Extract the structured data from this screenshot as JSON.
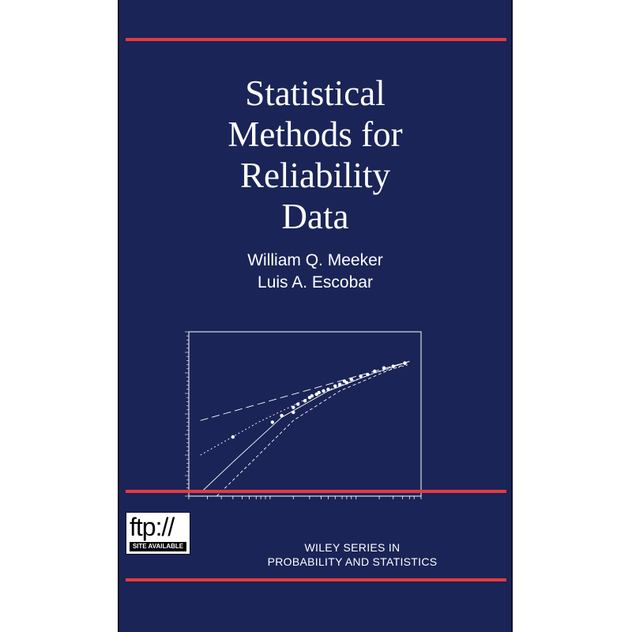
{
  "cover": {
    "background_color": "#1a2456",
    "rule_color": "#e53a3f",
    "title_lines": [
      "Statistical",
      "Methods for",
      "Reliability",
      "Data"
    ],
    "authors": [
      "William Q. Meeker",
      "Luis A. Escobar"
    ],
    "badge": {
      "main_text": "ftp://",
      "sub_text": "SITE AVAILABLE"
    },
    "series_lines": [
      "WILEY SERIES IN",
      "PROBABILITY AND STATISTICS"
    ]
  },
  "chart_data": {
    "type": "scatter",
    "title": "",
    "xlabel": "",
    "ylabel": "",
    "xlim": [
      0,
      100
    ],
    "ylim": [
      0,
      100
    ],
    "grid": false,
    "points": [
      {
        "x": 19,
        "y": 36
      },
      {
        "x": 36,
        "y": 45
      },
      {
        "x": 40,
        "y": 49
      },
      {
        "x": 45,
        "y": 54
      },
      {
        "x": 47,
        "y": 56
      },
      {
        "x": 50,
        "y": 58
      },
      {
        "x": 52,
        "y": 60
      },
      {
        "x": 53,
        "y": 61
      },
      {
        "x": 55,
        "y": 62
      },
      {
        "x": 56,
        "y": 63
      },
      {
        "x": 58,
        "y": 64
      },
      {
        "x": 60,
        "y": 65
      },
      {
        "x": 63,
        "y": 67
      },
      {
        "x": 65,
        "y": 68
      },
      {
        "x": 67,
        "y": 70
      },
      {
        "x": 70,
        "y": 71
      },
      {
        "x": 74,
        "y": 73
      },
      {
        "x": 77,
        "y": 74
      },
      {
        "x": 80,
        "y": 76
      },
      {
        "x": 84,
        "y": 78
      },
      {
        "x": 88,
        "y": 79
      },
      {
        "x": 93,
        "y": 81
      },
      {
        "x": 45,
        "y": 51
      },
      {
        "x": 68,
        "y": 69
      }
    ],
    "series": [
      {
        "style": "dash-long",
        "values": [
          [
            5,
            46
          ],
          [
            95,
            82
          ]
        ]
      },
      {
        "style": "dotted",
        "values": [
          [
            5,
            25
          ],
          [
            30,
            45
          ],
          [
            55,
            62
          ],
          [
            80,
            75
          ],
          [
            95,
            80
          ]
        ]
      },
      {
        "style": "solid",
        "values": [
          [
            5,
            2
          ],
          [
            20,
            22
          ],
          [
            40,
            48
          ],
          [
            60,
            64
          ],
          [
            80,
            75
          ],
          [
            95,
            82
          ]
        ]
      },
      {
        "style": "dash-short",
        "values": [
          [
            12,
            0
          ],
          [
            25,
            18
          ],
          [
            45,
            46
          ],
          [
            65,
            64
          ],
          [
            85,
            76
          ],
          [
            95,
            81
          ]
        ]
      }
    ]
  }
}
